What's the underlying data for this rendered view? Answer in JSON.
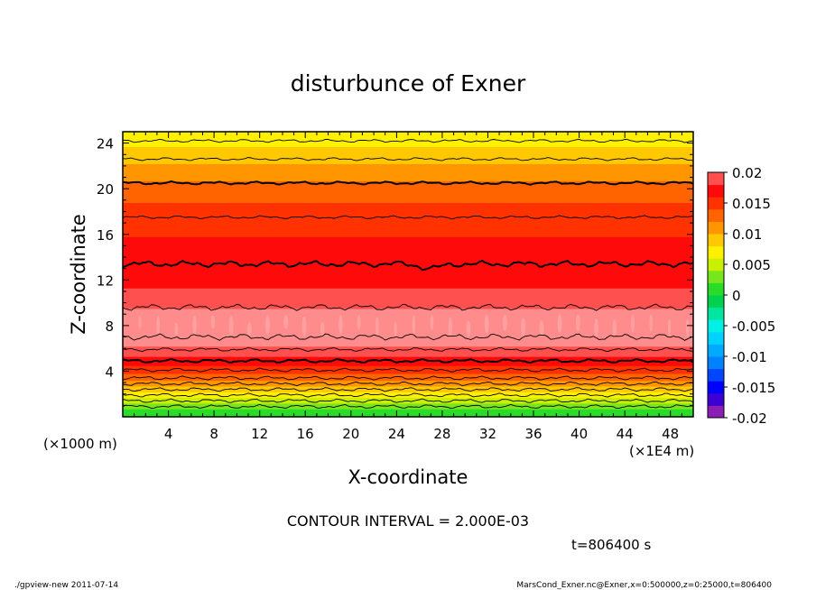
{
  "chart_data": {
    "type": "heatmap",
    "title": "disturbunce of Exner",
    "xlabel": "X-coordinate",
    "ylabel": "Z-coordinate",
    "x_unit_label": "(×1E4 m)",
    "y_unit_label": "(×1000 m)",
    "xlim": [
      0,
      50
    ],
    "ylim": [
      0,
      25
    ],
    "x_ticks": [
      4,
      8,
      12,
      16,
      20,
      24,
      28,
      32,
      36,
      40,
      44,
      48
    ],
    "y_ticks": [
      4,
      8,
      12,
      16,
      20,
      24
    ],
    "colorbar": {
      "labels": [
        "0.02",
        "0.015",
        "0.01",
        "0.005",
        "0",
        "-0.005",
        "-0.01",
        "-0.015",
        "-0.02"
      ],
      "range": [
        -0.02,
        0.02
      ],
      "levels": [
        {
          "lo": -0.02,
          "hi": -0.018,
          "color": "#8b1eb4"
        },
        {
          "lo": -0.018,
          "hi": -0.016,
          "color": "#3c00d2"
        },
        {
          "lo": -0.016,
          "hi": -0.014,
          "color": "#0000ff"
        },
        {
          "lo": -0.014,
          "hi": -0.012,
          "color": "#0046ff"
        },
        {
          "lo": -0.012,
          "hi": -0.01,
          "color": "#0082ff"
        },
        {
          "lo": -0.01,
          "hi": -0.008,
          "color": "#00aaff"
        },
        {
          "lo": -0.008,
          "hi": -0.006,
          "color": "#00d2ff"
        },
        {
          "lo": -0.006,
          "hi": -0.004,
          "color": "#00f0e6"
        },
        {
          "lo": -0.004,
          "hi": -0.002,
          "color": "#00e6a0"
        },
        {
          "lo": -0.002,
          "hi": 0.0,
          "color": "#00d250"
        },
        {
          "lo": 0.0,
          "hi": 0.002,
          "color": "#28dc28"
        },
        {
          "lo": 0.002,
          "hi": 0.004,
          "color": "#78e61e"
        },
        {
          "lo": 0.004,
          "hi": 0.006,
          "color": "#c8f000"
        },
        {
          "lo": 0.006,
          "hi": 0.008,
          "color": "#fff000"
        },
        {
          "lo": 0.008,
          "hi": 0.01,
          "color": "#ffc800"
        },
        {
          "lo": 0.01,
          "hi": 0.012,
          "color": "#ff9600"
        },
        {
          "lo": 0.012,
          "hi": 0.014,
          "color": "#ff6400"
        },
        {
          "lo": 0.014,
          "hi": 0.016,
          "color": "#ff3200"
        },
        {
          "lo": 0.016,
          "hi": 0.018,
          "color": "#ff0a0a"
        },
        {
          "lo": 0.018,
          "hi": 0.02,
          "color": "#ff5050"
        },
        {
          "lo": 0.02,
          "hi": 0.022,
          "color": "#ff8c8c"
        }
      ]
    },
    "profile": [
      {
        "z": 0.0,
        "value": 0.0005
      },
      {
        "z": 0.5,
        "value": 0.001
      },
      {
        "z": 1.0,
        "value": 0.003
      },
      {
        "z": 1.5,
        "value": 0.005
      },
      {
        "z": 2.0,
        "value": 0.007
      },
      {
        "z": 2.5,
        "value": 0.009
      },
      {
        "z": 3.0,
        "value": 0.011
      },
      {
        "z": 3.5,
        "value": 0.013
      },
      {
        "z": 4.2,
        "value": 0.015
      },
      {
        "z": 4.8,
        "value": 0.017
      },
      {
        "z": 5.8,
        "value": 0.019
      },
      {
        "z": 6.6,
        "value": 0.021
      },
      {
        "z": 8.0,
        "value": 0.0215
      },
      {
        "z": 9.0,
        "value": 0.021
      },
      {
        "z": 10.0,
        "value": 0.019
      },
      {
        "z": 12.0,
        "value": 0.0175
      },
      {
        "z": 13.4,
        "value": 0.017
      },
      {
        "z": 15.0,
        "value": 0.0165
      },
      {
        "z": 17.5,
        "value": 0.015
      },
      {
        "z": 20.0,
        "value": 0.013
      },
      {
        "z": 21.5,
        "value": 0.011
      },
      {
        "z": 23.0,
        "value": 0.009
      },
      {
        "z": 24.5,
        "value": 0.007
      },
      {
        "z": 25.0,
        "value": 0.0065
      }
    ],
    "contour_levels_z": [
      0.9,
      1.4,
      1.9,
      2.4,
      2.9,
      3.4,
      4.1,
      4.9,
      5.9,
      7.0,
      9.6,
      13.4,
      17.5,
      20.5,
      22.6,
      24.2
    ],
    "thick_contour_z": [
      4.9,
      13.4,
      20.5
    ],
    "contour_interval_text": "CONTOUR INTERVAL = 2.000E-03",
    "time_text": "t=806400  s",
    "footer_left": "./gpview-new  2011-07-14",
    "footer_right": "MarsCond_Exner.nc@Exner,x=0:500000,z=0:25000,t=806400"
  }
}
